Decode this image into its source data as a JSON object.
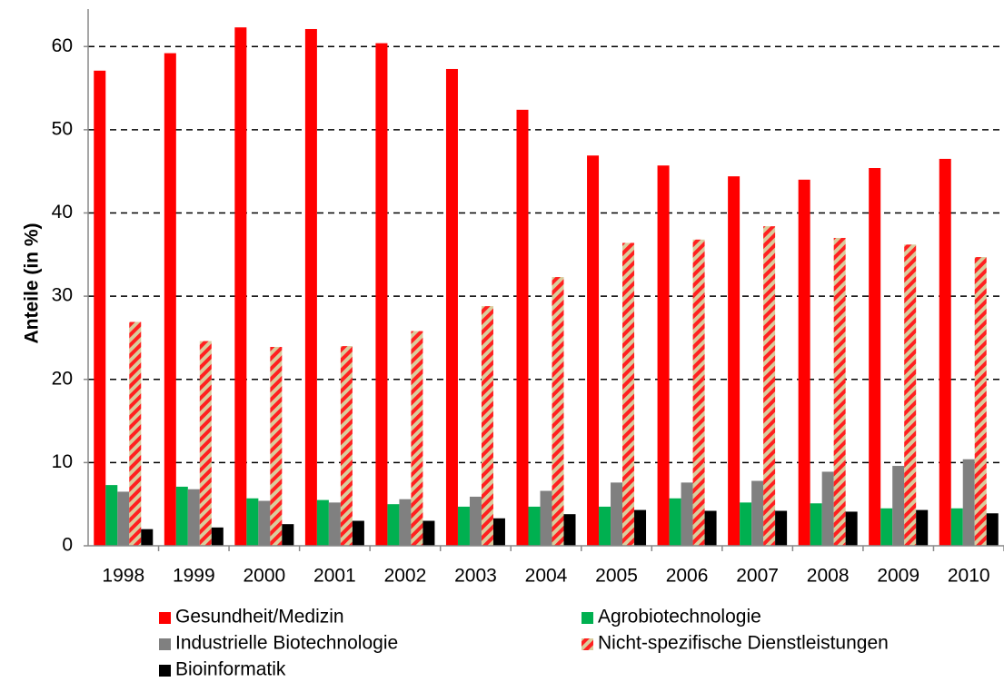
{
  "chart_data": {
    "type": "bar",
    "y_label": "Anteile (in %)",
    "categories": [
      "1998",
      "1999",
      "2000",
      "2001",
      "2002",
      "2003",
      "2004",
      "2005",
      "2006",
      "2007",
      "2008",
      "2009",
      "2010"
    ],
    "series": [
      {
        "name": "Gesundheit/Medizin",
        "color": "#ff0000",
        "values": [
          57.1,
          59.2,
          62.3,
          62.1,
          60.4,
          57.3,
          52.4,
          46.9,
          45.7,
          44.4,
          44.0,
          45.4,
          46.5
        ]
      },
      {
        "name": "Agrobiotechnologie",
        "color": "#00b050",
        "values": [
          7.3,
          7.1,
          5.7,
          5.5,
          5.0,
          4.7,
          4.7,
          4.7,
          5.7,
          5.2,
          5.1,
          4.5,
          4.5
        ]
      },
      {
        "name": "Industrielle Biotechnologie",
        "color": "#808080",
        "values": [
          6.5,
          6.8,
          5.4,
          5.2,
          5.6,
          5.9,
          6.6,
          7.6,
          7.6,
          7.8,
          8.9,
          9.6,
          10.4
        ]
      },
      {
        "name": "Nicht-spezifische Dienstleistungen",
        "color": "#d9cc9c",
        "hatch_color": "#ff2020",
        "values": [
          26.9,
          24.6,
          23.9,
          24.0,
          25.8,
          28.8,
          32.3,
          36.4,
          36.8,
          38.4,
          37.0,
          36.2,
          34.7
        ]
      },
      {
        "name": "Bioinformatik",
        "color": "#000000",
        "values": [
          2.0,
          2.2,
          2.6,
          3.0,
          3.0,
          3.3,
          3.8,
          4.3,
          4.2,
          4.2,
          4.1,
          4.3,
          3.9
        ]
      }
    ],
    "ylim": [
      0,
      64.5
    ],
    "yticks": [
      0,
      10,
      20,
      30,
      40,
      50,
      60
    ],
    "grid": true
  }
}
